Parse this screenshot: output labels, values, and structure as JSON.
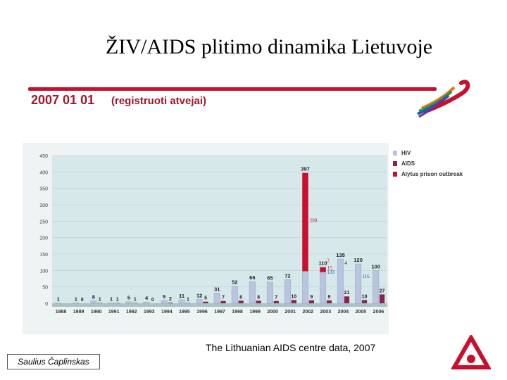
{
  "slide": {
    "title": "ŽIV/AIDS plitimo dinamika Lietuvoje",
    "date": "2007 01 01",
    "subtitle": "(registruoti atvejai)",
    "source": "The Lithuanian  AIDS centre data, 2007",
    "author": "Saulius Čaplinskas"
  },
  "colors": {
    "hiv": "#b9c5de",
    "aids": "#8b2252",
    "alytus": "#c8102e",
    "accent": "#c8102e"
  },
  "chart_data": {
    "type": "bar",
    "ylim": [
      0,
      450
    ],
    "yticks": [
      "0",
      "50",
      "100",
      "150",
      "200",
      "250",
      "300",
      "350",
      "400",
      "450"
    ],
    "categories": [
      "1988",
      "1989",
      "1990",
      "1991",
      "1992",
      "1993",
      "1994",
      "1995",
      "1996",
      "1997",
      "1998",
      "1999",
      "2000",
      "2001",
      "2002",
      "2003",
      "2004",
      "2005",
      "2006"
    ],
    "series": [
      {
        "name": "HIV",
        "values": [
          1,
          1,
          8,
          1,
          5,
          4,
          9,
          11,
          12,
          31,
          52,
          66,
          65,
          72,
          98,
          95,
          135,
          120,
          100
        ],
        "labels": [
          "1",
          "1",
          "8",
          "1",
          "5",
          "4",
          "9",
          "11",
          "12",
          "31",
          "52",
          "66",
          "65",
          "72",
          "98",
          "95",
          "135",
          "120",
          "100"
        ]
      },
      {
        "name": "AIDS",
        "values": [
          0,
          0,
          1,
          1,
          1,
          0,
          2,
          1,
          5,
          7,
          8,
          8,
          7,
          10,
          9,
          9,
          21,
          10,
          27
        ],
        "labels": [
          "",
          "0",
          "1",
          "1",
          "1",
          "0",
          "2",
          "1",
          "5",
          "7",
          "8",
          "8",
          "7",
          "10",
          "9",
          "9",
          "21",
          "10",
          "27"
        ]
      },
      {
        "name": "Alytus prison outbreak",
        "values": [
          0,
          0,
          0,
          0,
          0,
          0,
          0,
          0,
          0,
          0,
          0,
          0,
          0,
          0,
          299,
          15,
          0,
          0,
          0
        ],
        "labels": [
          "",
          "",
          "",
          "",
          "",
          "",
          "",
          "",
          "",
          "",
          "",
          "",
          "",
          "",
          "299",
          "15",
          "",
          "",
          ""
        ]
      }
    ],
    "stack_totals": {
      "2002": "397",
      "2003": "110"
    },
    "extra_labels": {
      "2003_top": "2",
      "2003_mid": "133",
      "2004_mid": "4",
      "2005_mid": "116"
    }
  }
}
